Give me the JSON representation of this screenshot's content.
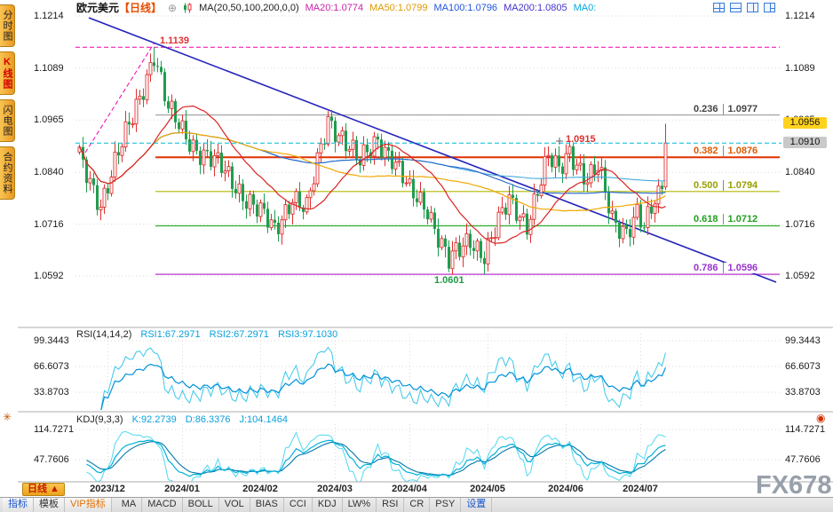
{
  "theme": {
    "up_color": "#e03030",
    "down_color": "#1f9d4f",
    "sidebar_tab_color": "#f0a92c",
    "tag_yellow": "#ffd21e",
    "tag_gray": "#c9c9c9",
    "trend_line_blue": "#2424bb",
    "drawing_magenta": "#f000b0",
    "current_price_cyan": "#00b8d8"
  },
  "sidebar": {
    "tabs": [
      {
        "label": "分时图",
        "active": false
      },
      {
        "label": "K线图",
        "active": true
      },
      {
        "label": "闪电图",
        "active": false
      },
      {
        "label": "合约资料",
        "active": false
      }
    ]
  },
  "header": {
    "symbol": "欧元美元",
    "period": "【日线】",
    "add_icon": "⊕",
    "ma_title": "MA(20,50,100,200,0,0)",
    "ma20": "MA20:1.0774",
    "ma50": "MA50:1.0799",
    "ma100": "MA100:1.0796",
    "ma200": "MA200:1.0805",
    "ma0": "MA0:"
  },
  "main_chart": {
    "left_axis": [
      "1.1214",
      "1.1089",
      "1.0965",
      "1.0840",
      "1.0716",
      "1.0592"
    ],
    "right_axis": [
      "1.1214",
      "1.1089",
      "1.0965",
      "1.0840",
      "1.0716",
      "1.0592"
    ],
    "tag_high": "1.0956",
    "tag_last": "1.0910",
    "fib": [
      {
        "ratio": "0.236",
        "price": "1.0977"
      },
      {
        "ratio": "0.382",
        "price": "1.0876"
      },
      {
        "ratio": "0.500",
        "price": "1.0794"
      },
      {
        "ratio": "0.618",
        "price": "1.0712"
      },
      {
        "ratio": "0.786",
        "price": "1.0596"
      }
    ],
    "peak_label": "1.1139",
    "swing_label": "1.0915",
    "low_label": "1.0601"
  },
  "rsi_panel": {
    "title": "RSI(14,14,2)",
    "rsi1": "RSI1:67.2971",
    "rsi2": "RSI2:67.2971",
    "rsi3": "RSI3:97.1030",
    "axis": [
      "99.3443",
      "66.6073",
      "33.8703"
    ]
  },
  "kdj_panel": {
    "title": "KDJ(9,3,3)",
    "k": "K:92.2739",
    "d": "D:86.3376",
    "j": "J:104.1464",
    "axis": [
      "114.7271",
      "47.7606"
    ]
  },
  "x_axis": {
    "labels": [
      "2023/12",
      "2024/01",
      "2024/02",
      "2024/03",
      "2024/04",
      "2024/05",
      "2024/06",
      "2024/07"
    ]
  },
  "footer": {
    "period_button": "日线",
    "period_arrow": "▲",
    "group_tabs": [
      {
        "label": "指标"
      },
      {
        "label": "模板"
      },
      {
        "label": "VIP指标"
      }
    ],
    "indicators": [
      "MA",
      "MACD",
      "BOLL",
      "VOL",
      "BIAS",
      "CCI",
      "KDJ",
      "LW%",
      "RSI",
      "CR",
      "PSY"
    ],
    "settings": "设置"
  },
  "watermark": "FX678",
  "chart_data": {
    "type": "candlestick",
    "symbol": "EUR/USD 欧元美元",
    "period": "daily",
    "price_axis_ticks": [
      1.1214,
      1.1089,
      1.0965,
      1.084,
      1.0716,
      1.0592
    ],
    "x_ticks": [
      {
        "label": "2023/12",
        "idx": 8
      },
      {
        "label": "2024/01",
        "idx": 29
      },
      {
        "label": "2024/02",
        "idx": 51
      },
      {
        "label": "2024/03",
        "idx": 72
      },
      {
        "label": "2024/04",
        "idx": 93
      },
      {
        "label": "2024/05",
        "idx": 115
      },
      {
        "label": "2024/06",
        "idx": 137
      },
      {
        "label": "2024/07",
        "idx": 158
      }
    ],
    "candle_count": 166,
    "swing_points": [
      [
        0,
        1.0872
      ],
      [
        6,
        1.0768
      ],
      [
        14,
        1.0948
      ],
      [
        21,
        1.1125
      ],
      [
        25,
        1.0985
      ],
      [
        29,
        1.094
      ],
      [
        34,
        1.089
      ],
      [
        40,
        1.0848
      ],
      [
        48,
        1.0772
      ],
      [
        55,
        1.0698
      ],
      [
        60,
        1.0788
      ],
      [
        64,
        1.0748
      ],
      [
        70,
        1.0968
      ],
      [
        74,
        1.0928
      ],
      [
        79,
        1.0858
      ],
      [
        84,
        1.0922
      ],
      [
        88,
        1.0878
      ],
      [
        93,
        1.0788
      ],
      [
        98,
        1.0758
      ],
      [
        104,
        1.0625
      ],
      [
        107,
        1.0648
      ],
      [
        110,
        1.068
      ],
      [
        114,
        1.0648
      ],
      [
        121,
        1.0768
      ],
      [
        126,
        1.0722
      ],
      [
        132,
        1.087
      ],
      [
        135,
        1.0842
      ],
      [
        138,
        1.0898
      ],
      [
        143,
        1.0818
      ],
      [
        146,
        1.0845
      ],
      [
        150,
        1.0732
      ],
      [
        154,
        1.0702
      ],
      [
        157,
        1.0738
      ],
      [
        159,
        1.0698
      ],
      [
        162,
        1.0772
      ],
      [
        164,
        1.08
      ],
      [
        165,
        1.091
      ]
    ],
    "key_levels": {
      "peak_high": 1.1139,
      "june_high": 1.0915,
      "april_low": 1.0601,
      "last_close": 1.091,
      "day_high": 1.0956
    },
    "fibonacci_retracement": [
      {
        "ratio": 0.236,
        "price": 1.0977
      },
      {
        "ratio": 0.382,
        "price": 1.0876
      },
      {
        "ratio": 0.5,
        "price": 1.0794
      },
      {
        "ratio": 0.618,
        "price": 1.0712
      },
      {
        "ratio": 0.786,
        "price": 1.0596
      }
    ],
    "moving_averages": {
      "MA20": 1.0774,
      "MA50": 1.0799,
      "MA100": 1.0796,
      "MA200": 1.0805
    },
    "rsi": {
      "params": [
        14,
        14,
        2
      ],
      "RSI1": 67.2971,
      "RSI2": 67.2971,
      "RSI3": 97.103,
      "axis_ticks": [
        99.3443,
        66.6073,
        33.8703
      ]
    },
    "kdj": {
      "params": [
        9,
        3,
        3
      ],
      "K": 92.2739,
      "D": 86.3376,
      "J": 104.1464,
      "axis_ticks": [
        114.7271,
        47.7606
      ]
    },
    "trend_lines": {
      "horizontal_peak_level": 1.1139,
      "descending_trendline": true,
      "rising_dashed_segment": true
    }
  }
}
